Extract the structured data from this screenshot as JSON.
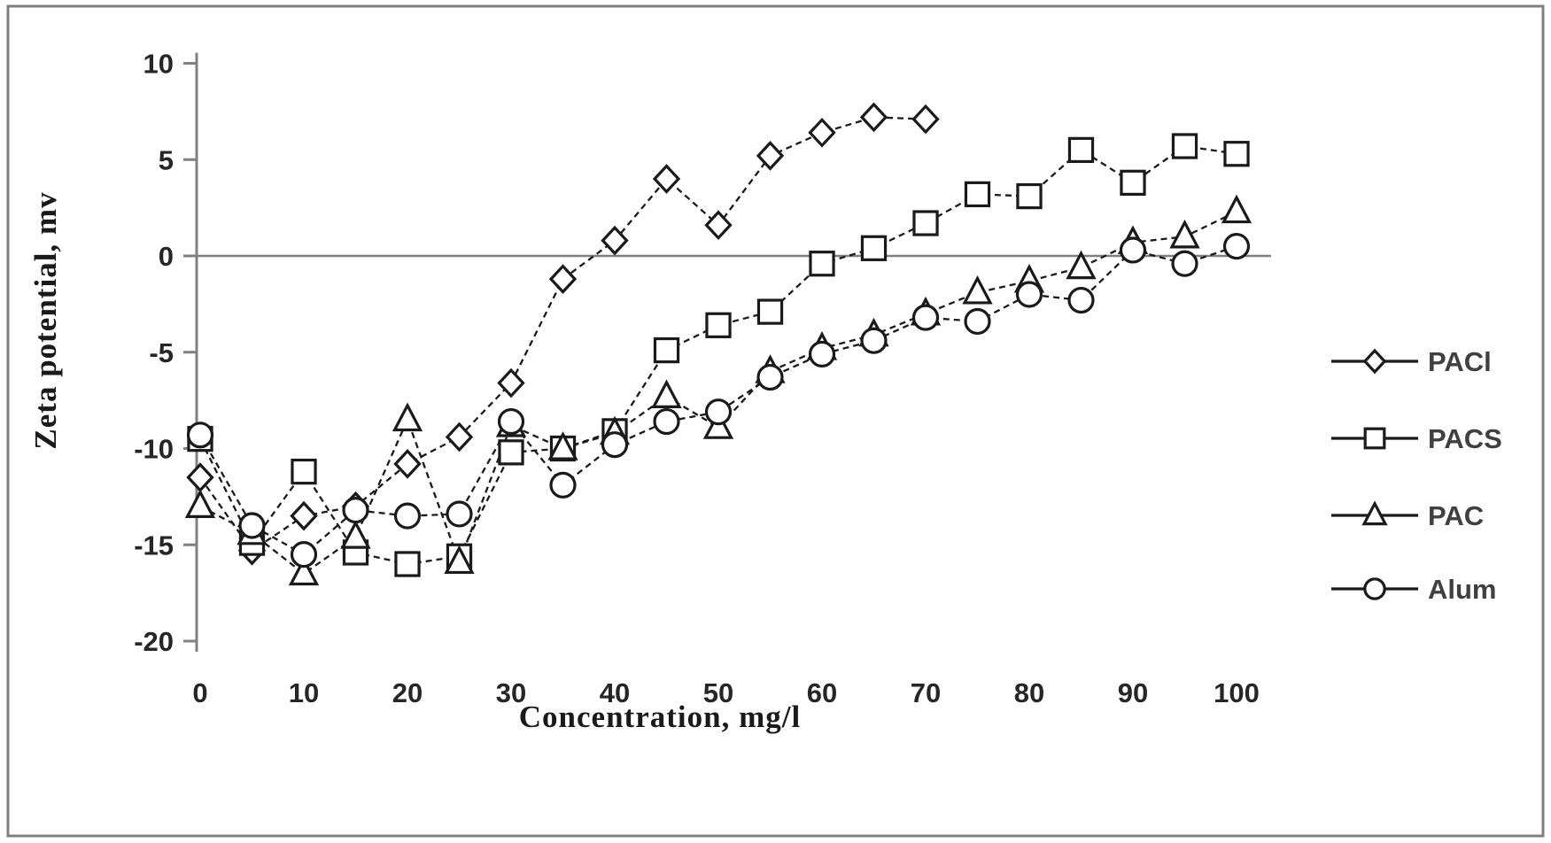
{
  "chart_data": {
    "type": "line",
    "title": "",
    "xlabel": "Concentration, mg/l",
    "ylabel": "Zeta potential, mv",
    "xlim": [
      0,
      104
    ],
    "ylim": [
      -20,
      10
    ],
    "x_tick_labels": [
      "0",
      "10",
      "20",
      "30",
      "40",
      "50",
      "60",
      "70",
      "80",
      "90",
      "100"
    ],
    "x_tick_values": [
      0,
      10,
      20,
      30,
      40,
      50,
      60,
      70,
      80,
      90,
      100
    ],
    "y_tick_labels": [
      "10",
      "5",
      "0",
      "-5",
      "-10",
      "-15",
      "-20"
    ],
    "y_tick_values": [
      10,
      5,
      0,
      -5,
      -10,
      -15,
      -20
    ],
    "grid": "zero-line-only",
    "legend_position": "right",
    "colors": {
      "line": "#1a1a1a",
      "marker_fill": "#ffffff",
      "axis": "#808080",
      "frame": "#7f7f7f",
      "tick_text": "#262626",
      "legend_text": "#404040"
    },
    "series": [
      {
        "name": "PACl",
        "marker": "diamond",
        "x": [
          0,
          5,
          10,
          15,
          20,
          25,
          30,
          35,
          40,
          45,
          50,
          55,
          60,
          65,
          70
        ],
        "values": [
          -11.5,
          -15.3,
          -13.5,
          -13.0,
          -10.8,
          -9.4,
          -6.6,
          -1.2,
          0.8,
          4.0,
          1.6,
          5.2,
          6.4,
          7.2,
          7.1
        ]
      },
      {
        "name": "PACS",
        "marker": "square",
        "x": [
          0,
          5,
          10,
          15,
          20,
          25,
          30,
          35,
          40,
          45,
          50,
          55,
          60,
          65,
          70,
          75,
          80,
          85,
          90,
          95,
          100
        ],
        "values": [
          -9.5,
          -14.9,
          -11.2,
          -15.4,
          -16.0,
          -15.6,
          -10.2,
          -10.0,
          -9.1,
          -4.9,
          -3.6,
          -2.9,
          -0.4,
          0.4,
          1.7,
          3.2,
          3.1,
          5.5,
          3.8,
          5.7,
          5.3
        ]
      },
      {
        "name": "PAC",
        "marker": "triangle",
        "x": [
          0,
          5,
          10,
          15,
          20,
          25,
          30,
          35,
          40,
          45,
          50,
          55,
          60,
          65,
          70,
          75,
          80,
          85,
          90,
          95,
          100
        ],
        "values": [
          -13.0,
          -14.4,
          -16.5,
          -14.6,
          -8.5,
          -15.9,
          -8.8,
          -10.0,
          -9.2,
          -7.3,
          -8.9,
          -6.0,
          -4.8,
          -4.1,
          -3.0,
          -1.9,
          -1.3,
          -0.6,
          0.7,
          1.0,
          2.3
        ]
      },
      {
        "name": "Alum",
        "marker": "circle",
        "x": [
          0,
          5,
          10,
          15,
          20,
          25,
          30,
          35,
          40,
          45,
          50,
          55,
          60,
          65,
          70,
          75,
          80,
          85,
          90,
          95,
          100
        ],
        "values": [
          -9.3,
          -14.0,
          -15.5,
          -13.2,
          -13.5,
          -13.4,
          -8.6,
          -11.9,
          -9.8,
          -8.6,
          -8.1,
          -6.3,
          -5.1,
          -4.4,
          -3.2,
          -3.4,
          -2.0,
          -2.3,
          0.3,
          -0.4,
          0.5
        ]
      }
    ],
    "legend_entries": [
      {
        "label": "PACl",
        "marker": "diamond"
      },
      {
        "label": "PACS",
        "marker": "square"
      },
      {
        "label": "PAC",
        "marker": "triangle"
      },
      {
        "label": "Alum",
        "marker": "circle"
      }
    ]
  }
}
